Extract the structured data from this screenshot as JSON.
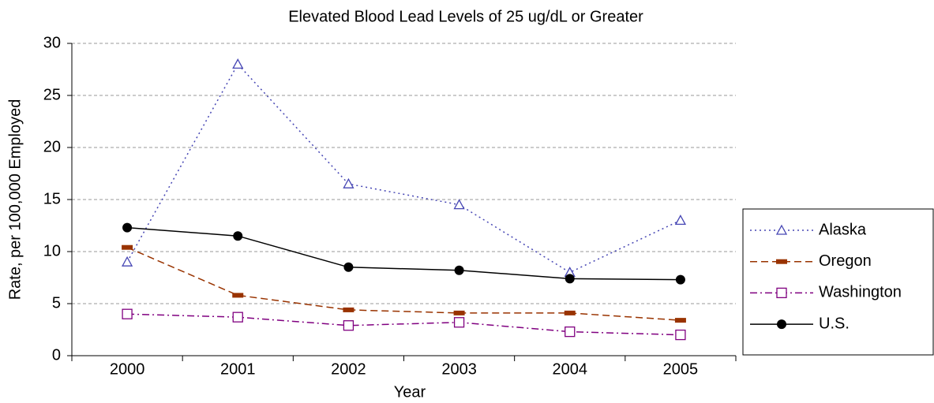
{
  "chart_data": {
    "type": "line",
    "title": "Elevated Blood Lead Levels of 25 ug/dL or Greater",
    "x_label": "Year",
    "y_label": "Rate, per 100,000 Employed",
    "categories": [
      "2000",
      "2001",
      "2002",
      "2003",
      "2004",
      "2005"
    ],
    "series": [
      {
        "name": "Alaska",
        "color": "#4646b4",
        "line_style": "dotted",
        "marker": "triangle",
        "values": [
          9,
          28,
          16.5,
          14.5,
          8,
          13
        ]
      },
      {
        "name": "Oregon",
        "color": "#993300",
        "line_style": "dashed",
        "marker": "dash",
        "values": [
          10.4,
          5.8,
          4.4,
          4.1,
          4.1,
          3.4
        ]
      },
      {
        "name": "Washington",
        "color": "#800080",
        "line_style": "dash-dot",
        "marker": "square",
        "values": [
          4,
          3.7,
          2.9,
          3.2,
          2.3,
          2
        ]
      },
      {
        "name": "U.S.",
        "color": "#000000",
        "line_style": "solid",
        "marker": "circle",
        "values": [
          12.3,
          11.5,
          8.5,
          8.2,
          7.4,
          7.3
        ]
      }
    ],
    "ylim": [
      0,
      30
    ],
    "yticks": [
      0,
      5,
      10,
      15,
      20,
      25,
      30
    ],
    "grid": true,
    "legend": "right"
  }
}
